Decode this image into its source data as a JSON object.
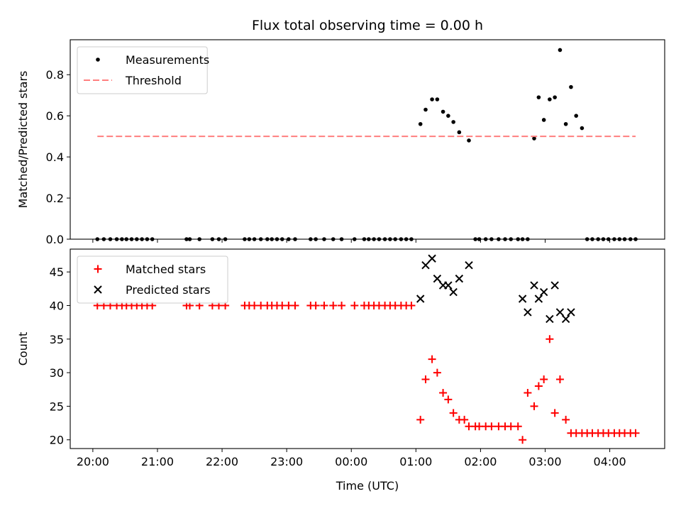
{
  "chart_data": {
    "title": "Flux total observing time = 0.00 h",
    "shared_x": {
      "label": "Time (UTC)",
      "unit": "hours since 20:00",
      "xlim": [
        -0.35,
        8.85
      ],
      "ticks": [
        0,
        1,
        2,
        3,
        4,
        5,
        6,
        7,
        8
      ],
      "tick_labels": [
        "20:00",
        "21:00",
        "22:00",
        "23:00",
        "00:00",
        "01:00",
        "02:00",
        "03:00",
        "04:00"
      ]
    },
    "panels": [
      {
        "type": "scatter",
        "ylabel": "Matched/Predicted stars",
        "ylim": [
          0,
          0.97
        ],
        "yticks": [
          0.0,
          0.2,
          0.4,
          0.6,
          0.8
        ],
        "ytick_labels": [
          "0.0",
          "0.2",
          "0.4",
          "0.6",
          "0.8"
        ],
        "legend": {
          "placement": "upper-left",
          "entries": [
            "Measurements",
            "Threshold"
          ]
        },
        "series": [
          {
            "name": "Measurements",
            "marker": "dot",
            "color": "#000000",
            "x": [
              0.07,
              0.17,
              0.27,
              0.37,
              0.45,
              0.52,
              0.6,
              0.68,
              0.76,
              0.84,
              0.92,
              1.45,
              1.5,
              1.65,
              1.85,
              1.95,
              2.05,
              2.35,
              2.42,
              2.5,
              2.6,
              2.7,
              2.77,
              2.85,
              2.93,
              3.03,
              3.13,
              3.37,
              3.45,
              3.58,
              3.72,
              3.85,
              4.05,
              4.2,
              4.27,
              4.35,
              4.43,
              4.52,
              4.6,
              4.68,
              4.77,
              4.85,
              4.93,
              5.07,
              5.15,
              5.25,
              5.33,
              5.42,
              5.5,
              5.58,
              5.67,
              5.82,
              5.92,
              5.98,
              6.08,
              6.17,
              6.28,
              6.38,
              6.47,
              6.58,
              6.65,
              6.73,
              6.83,
              6.9,
              6.98,
              7.07,
              7.15,
              7.23,
              7.32,
              7.4,
              7.48,
              7.57,
              7.65,
              7.73,
              7.82,
              7.9,
              7.98,
              8.07,
              8.15,
              8.23,
              8.32,
              8.4
            ],
            "y": [
              0,
              0,
              0,
              0,
              0,
              0,
              0,
              0,
              0,
              0,
              0,
              0,
              0,
              0,
              0,
              0,
              0,
              0,
              0,
              0,
              0,
              0,
              0,
              0,
              0,
              0,
              0,
              0,
              0,
              0,
              0,
              0,
              0,
              0,
              0,
              0,
              0,
              0,
              0,
              0,
              0,
              0,
              0,
              0.56,
              0.63,
              0.68,
              0.68,
              0.62,
              0.6,
              0.57,
              0.52,
              0.48,
              0,
              0,
              0,
              0,
              0,
              0,
              0,
              0,
              0,
              0,
              0.49,
              0.69,
              0.58,
              0.68,
              0.69,
              0.92,
              0.56,
              0.74,
              0.6,
              0.54,
              0,
              0,
              0,
              0,
              0,
              0,
              0,
              0,
              0,
              0
            ]
          },
          {
            "name": "Threshold",
            "marker": "dashed-line",
            "color": "#ff7f7f",
            "x": [
              0.07,
              8.4
            ],
            "y": [
              0.5,
              0.5
            ]
          }
        ]
      },
      {
        "type": "scatter",
        "ylabel": "Count",
        "ylim": [
          18.7,
          48.4
        ],
        "yticks": [
          20,
          25,
          30,
          35,
          40,
          45
        ],
        "ytick_labels": [
          "20",
          "25",
          "30",
          "35",
          "40",
          "45"
        ],
        "legend": {
          "placement": "upper-left",
          "entries": [
            "Matched stars",
            "Predicted stars"
          ]
        },
        "series": [
          {
            "name": "Matched stars",
            "marker": "plus",
            "color": "#ff0000",
            "x": [
              0.07,
              0.17,
              0.27,
              0.37,
              0.45,
              0.52,
              0.6,
              0.68,
              0.76,
              0.84,
              0.92,
              1.45,
              1.5,
              1.65,
              1.85,
              1.95,
              2.05,
              2.35,
              2.42,
              2.5,
              2.6,
              2.7,
              2.77,
              2.85,
              2.93,
              3.03,
              3.13,
              3.37,
              3.45,
              3.58,
              3.72,
              3.85,
              4.05,
              4.2,
              4.27,
              4.35,
              4.43,
              4.52,
              4.6,
              4.68,
              4.77,
              4.85,
              4.93,
              5.07,
              5.15,
              5.25,
              5.33,
              5.42,
              5.5,
              5.58,
              5.67,
              5.75,
              5.82,
              5.92,
              5.98,
              6.08,
              6.17,
              6.28,
              6.38,
              6.47,
              6.58,
              6.65,
              6.73,
              6.83,
              6.9,
              6.98,
              7.07,
              7.15,
              7.23,
              7.32,
              7.4,
              7.48,
              7.57,
              7.65,
              7.73,
              7.82,
              7.9,
              7.98,
              8.07,
              8.15,
              8.23,
              8.32,
              8.4
            ],
            "y": [
              40,
              40,
              40,
              40,
              40,
              40,
              40,
              40,
              40,
              40,
              40,
              40,
              40,
              40,
              40,
              40,
              40,
              40,
              40,
              40,
              40,
              40,
              40,
              40,
              40,
              40,
              40,
              40,
              40,
              40,
              40,
              40,
              40,
              40,
              40,
              40,
              40,
              40,
              40,
              40,
              40,
              40,
              40,
              23,
              29,
              32,
              30,
              27,
              26,
              24,
              23,
              23,
              22,
              22,
              22,
              22,
              22,
              22,
              22,
              22,
              22,
              20,
              27,
              25,
              28,
              29,
              35,
              24,
              29,
              23,
              21,
              21,
              21,
              21,
              21,
              21,
              21,
              21,
              21,
              21,
              21,
              21,
              21
            ]
          },
          {
            "name": "Predicted stars",
            "marker": "x",
            "color": "#000000",
            "x": [
              5.07,
              5.15,
              5.25,
              5.33,
              5.42,
              5.5,
              5.58,
              5.67,
              5.82,
              6.65,
              6.73,
              6.83,
              6.9,
              6.98,
              7.07,
              7.15,
              7.23,
              7.32,
              7.4
            ],
            "y": [
              41,
              46,
              47,
              44,
              43,
              43,
              42,
              44,
              46,
              41,
              39,
              43,
              41,
              42,
              38,
              43,
              39,
              38,
              39
            ]
          }
        ]
      }
    ]
  }
}
